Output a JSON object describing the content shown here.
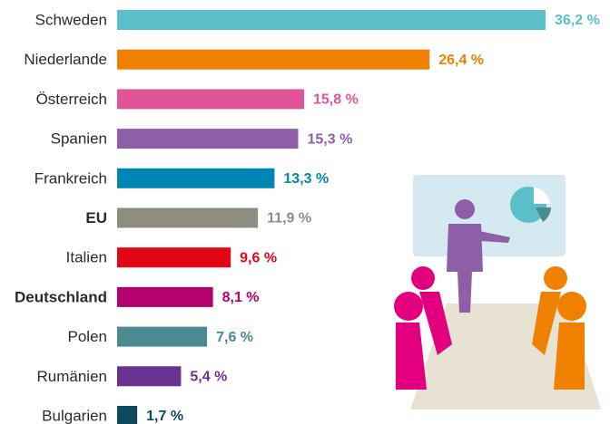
{
  "chart_data": {
    "type": "bar",
    "categories": [
      "Schweden",
      "Niederlande",
      "Österreich",
      "Spanien",
      "Frankreich",
      "EU",
      "Italien",
      "Deutschland",
      "Polen",
      "Rumänien",
      "Bulgarien"
    ],
    "values": [
      36.2,
      26.4,
      15.8,
      15.3,
      13.3,
      11.9,
      9.6,
      8.1,
      7.6,
      5.4,
      1.7
    ],
    "value_labels": [
      "36,2 %",
      "26,4 %",
      "15,8 %",
      "15,3 %",
      "13,3 %",
      "11,9 %",
      "9,6 %",
      "8,1 %",
      "7,6 %",
      "5,4 %",
      "1,7 %"
    ],
    "colors": [
      "#5bbfc9",
      "#f08000",
      "#e0559a",
      "#8e5ea8",
      "#0086b3",
      "#8f8c82",
      "#e30613",
      "#b5006e",
      "#4a8a90",
      "#6a3290",
      "#0d4a5e"
    ],
    "label_colors": [
      "#2b2b2b",
      "#2b2b2b",
      "#2b2b2b",
      "#2b2b2b",
      "#2b2b2b",
      "#8f8c82",
      "#2b2b2b",
      "#b5006e",
      "#2b2b2b",
      "#2b2b2b",
      "#2b2b2b"
    ],
    "label_bold": [
      false,
      false,
      false,
      false,
      false,
      true,
      false,
      true,
      false,
      false,
      false
    ]
  }
}
